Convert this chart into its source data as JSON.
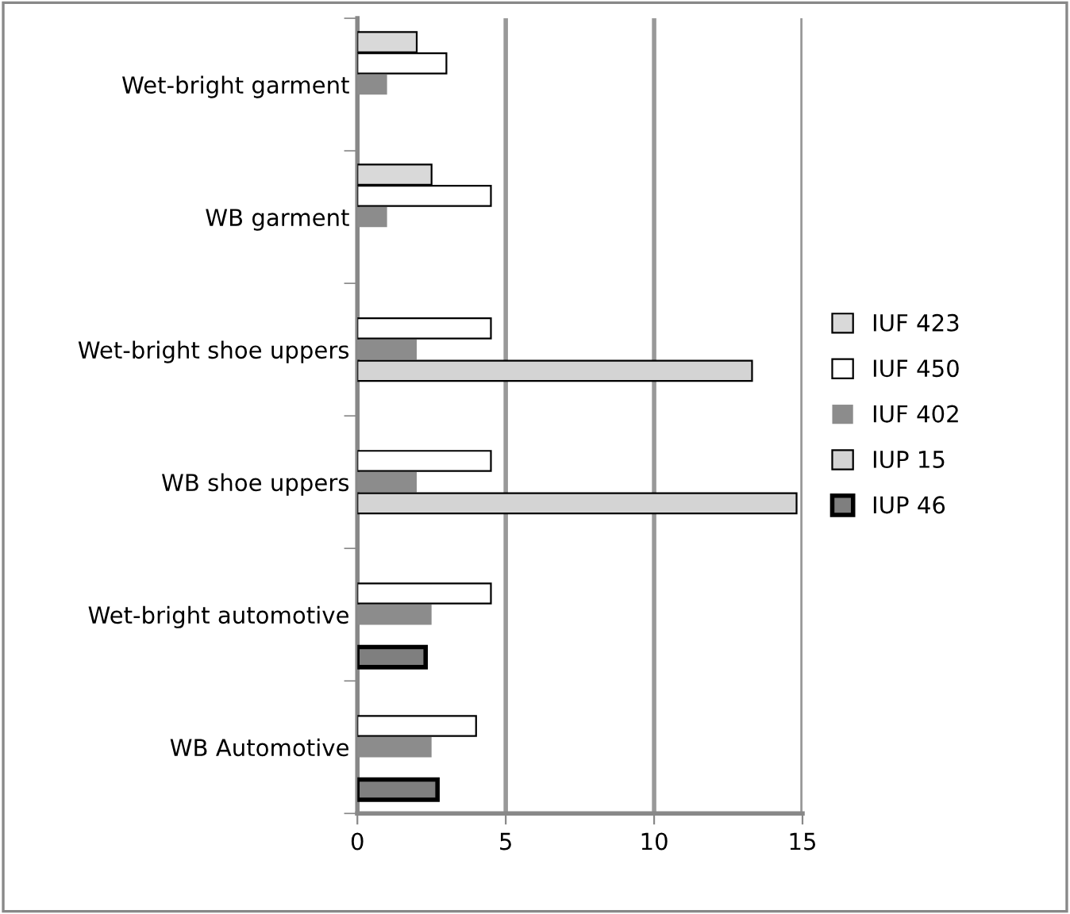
{
  "chart_data": {
    "type": "bar",
    "orientation": "horizontal",
    "categories": [
      "Wet-bright garment",
      "WB garment",
      "Wet-bright shoe uppers",
      "WB shoe uppers",
      "Wet-bright automotive",
      "WB Automotive"
    ],
    "series": [
      {
        "name": "IUF 423",
        "color": "#d9d9d9",
        "values": [
          2.0,
          2.5,
          null,
          null,
          null,
          null
        ]
      },
      {
        "name": "IUF 450",
        "color": "#ffffff",
        "values": [
          3.0,
          4.5,
          4.5,
          4.5,
          4.5,
          4.0
        ]
      },
      {
        "name": "IUF 402",
        "color": "#8c8c8c",
        "values": [
          1.0,
          1.0,
          2.0,
          2.0,
          2.5,
          2.5
        ]
      },
      {
        "name": "IUP 15",
        "color": "#d4d4d4",
        "values": [
          null,
          null,
          13.3,
          14.8,
          null,
          null
        ]
      },
      {
        "name": "IUP 46",
        "color": "#7f7f7f",
        "values": [
          null,
          null,
          null,
          null,
          2.3,
          2.7
        ]
      }
    ],
    "xlim": [
      0,
      15
    ],
    "xticks": [
      0,
      5,
      10,
      15
    ],
    "grid": "x",
    "legend": "right"
  }
}
